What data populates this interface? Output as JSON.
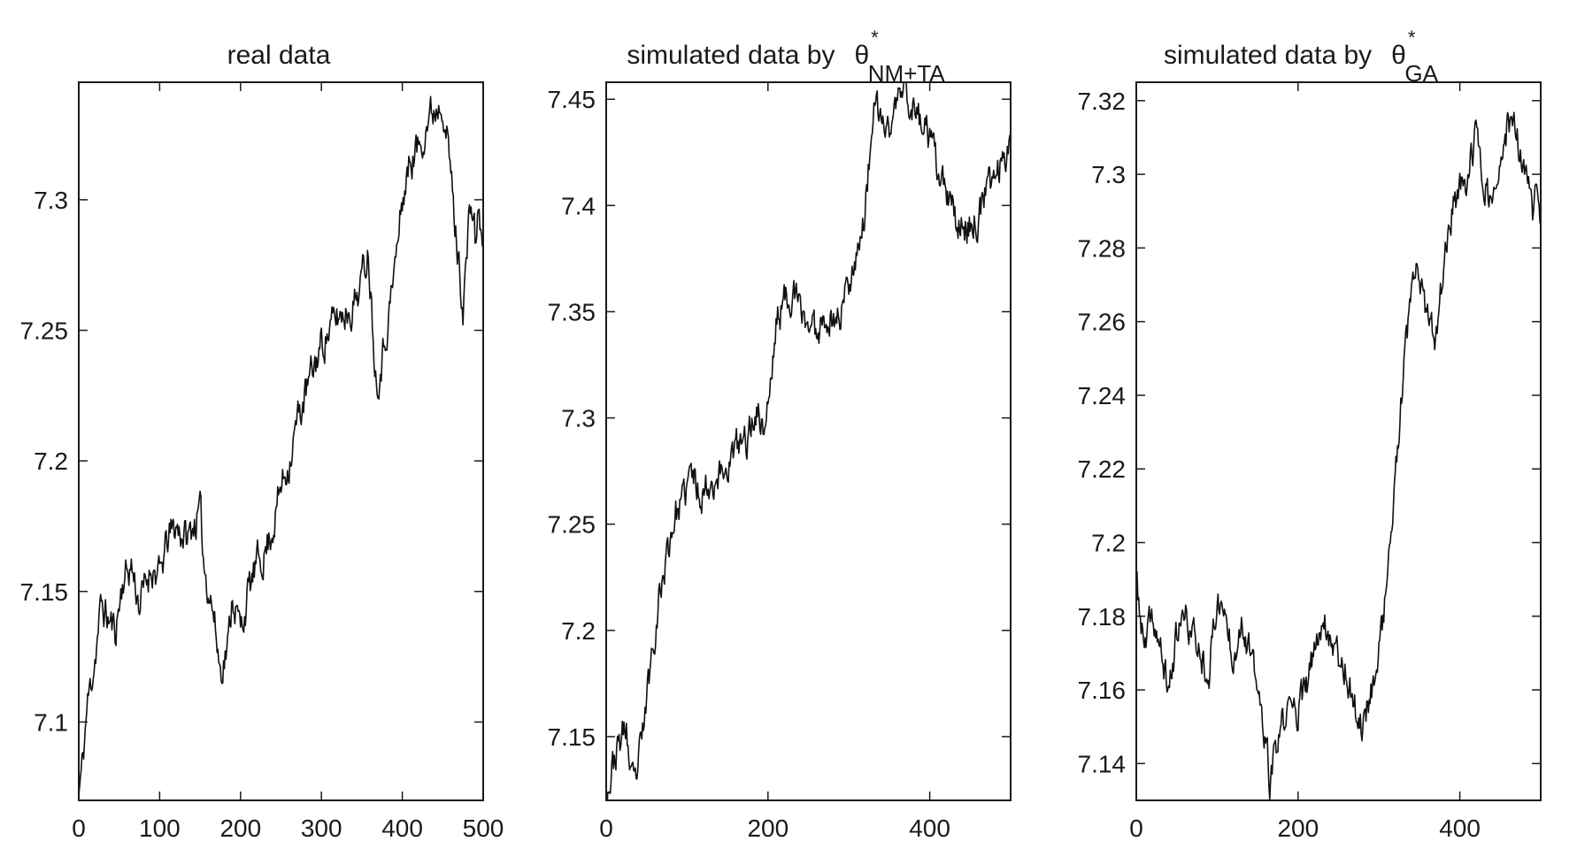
{
  "chart_data": [
    {
      "type": "line",
      "title": "real data",
      "title_math": null,
      "xlim": [
        0,
        500
      ],
      "ylim": [
        7.07,
        7.345
      ],
      "xticks": [
        0,
        100,
        200,
        300,
        400,
        500
      ],
      "xtick_labels": [
        "0",
        "100",
        "200",
        "300",
        "400",
        "500"
      ],
      "yticks": [
        7.1,
        7.15,
        7.2,
        7.25,
        7.3
      ],
      "ytick_labels": [
        "7.1",
        "7.15",
        "7.2",
        "7.25",
        "7.3"
      ],
      "grid": false,
      "series": [
        {
          "color": "#111111",
          "anchors_x": [
            0,
            5,
            10,
            20,
            28,
            35,
            45,
            55,
            65,
            75,
            90,
            100,
            110,
            120,
            135,
            140,
            150,
            155,
            165,
            175,
            185,
            190,
            200,
            210,
            220,
            230,
            240,
            250,
            260,
            270,
            285,
            300,
            320,
            340,
            350,
            358,
            362,
            368,
            375,
            385,
            395,
            400,
            410,
            420,
            430,
            440,
            450,
            455,
            460,
            465,
            470,
            475,
            480,
            485,
            490,
            495,
            500
          ],
          "anchors_y": [
            7.072,
            7.085,
            7.105,
            7.125,
            7.145,
            7.14,
            7.135,
            7.155,
            7.16,
            7.145,
            7.16,
            7.155,
            7.17,
            7.175,
            7.17,
            7.175,
            7.18,
            7.16,
            7.145,
            7.12,
            7.13,
            7.15,
            7.135,
            7.15,
            7.16,
            7.165,
            7.175,
            7.19,
            7.2,
            7.215,
            7.23,
            7.245,
            7.255,
            7.26,
            7.27,
            7.282,
            7.26,
            7.23,
            7.24,
            7.26,
            7.285,
            7.3,
            7.315,
            7.32,
            7.33,
            7.335,
            7.34,
            7.325,
            7.31,
            7.29,
            7.275,
            7.26,
            7.28,
            7.3,
            7.285,
            7.295,
            7.28
          ],
          "noise_amp": 0.006,
          "seed": 11
        }
      ]
    },
    {
      "type": "line",
      "title": "simulated data by",
      "title_math": {
        "symbol": "θ",
        "sup": "*",
        "sub": "NM+TA"
      },
      "xlim": [
        0,
        500
      ],
      "ylim": [
        7.12,
        7.458
      ],
      "xticks": [
        0,
        200,
        400
      ],
      "xtick_labels": [
        "0",
        "200",
        "400"
      ],
      "yticks": [
        7.15,
        7.2,
        7.25,
        7.3,
        7.35,
        7.4,
        7.45
      ],
      "ytick_labels": [
        "7.15",
        "7.2",
        "7.25",
        "7.3",
        "7.35",
        "7.4",
        "7.45"
      ],
      "grid": false,
      "series": [
        {
          "color": "#111111",
          "anchors_x": [
            0,
            5,
            10,
            20,
            25,
            30,
            35,
            45,
            55,
            65,
            75,
            85,
            95,
            105,
            115,
            130,
            145,
            160,
            175,
            185,
            195,
            205,
            210,
            220,
            230,
            240,
            250,
            260,
            270,
            280,
            290,
            300,
            310,
            320,
            325,
            330,
            340,
            350,
            360,
            370,
            380,
            390,
            400,
            410,
            420,
            430,
            440,
            450,
            460,
            470,
            480,
            490,
            500
          ],
          "anchors_y": [
            7.125,
            7.13,
            7.14,
            7.15,
            7.155,
            7.13,
            7.125,
            7.15,
            7.185,
            7.215,
            7.235,
            7.255,
            7.26,
            7.275,
            7.265,
            7.27,
            7.275,
            7.285,
            7.29,
            7.305,
            7.295,
            7.32,
            7.345,
            7.355,
            7.36,
            7.35,
            7.345,
            7.34,
            7.35,
            7.345,
            7.35,
            7.365,
            7.38,
            7.395,
            7.42,
            7.445,
            7.44,
            7.435,
            7.45,
            7.455,
            7.445,
            7.44,
            7.43,
            7.415,
            7.405,
            7.395,
            7.39,
            7.39,
            7.395,
            7.405,
            7.415,
            7.42,
            7.435
          ],
          "noise_amp": 0.007,
          "seed": 23
        }
      ]
    },
    {
      "type": "line",
      "title": "simulated data by",
      "title_math": {
        "symbol": "θ",
        "sup": "*",
        "sub": "GA"
      },
      "xlim": [
        0,
        500
      ],
      "ylim": [
        7.13,
        7.325
      ],
      "xticks": [
        0,
        200,
        400
      ],
      "xtick_labels": [
        "0",
        "200",
        "400"
      ],
      "yticks": [
        7.14,
        7.16,
        7.18,
        7.2,
        7.22,
        7.24,
        7.26,
        7.28,
        7.3,
        7.32
      ],
      "ytick_labels": [
        "7.14",
        "7.16",
        "7.18",
        "7.2",
        "7.22",
        "7.24",
        "7.26",
        "7.28",
        "7.3",
        "7.32"
      ],
      "grid": false,
      "series": [
        {
          "color": "#111111",
          "anchors_x": [
            0,
            5,
            10,
            20,
            30,
            40,
            50,
            60,
            70,
            80,
            90,
            100,
            110,
            120,
            130,
            140,
            150,
            160,
            165,
            170,
            180,
            190,
            200,
            210,
            220,
            230,
            240,
            250,
            260,
            270,
            280,
            290,
            300,
            310,
            320,
            330,
            340,
            345,
            350,
            360,
            370,
            380,
            390,
            400,
            410,
            420,
            430,
            440,
            450,
            460,
            470,
            480,
            490,
            495,
            500
          ],
          "anchors_y": [
            7.19,
            7.18,
            7.17,
            7.18,
            7.17,
            7.16,
            7.175,
            7.18,
            7.175,
            7.17,
            7.165,
            7.185,
            7.18,
            7.17,
            7.18,
            7.17,
            7.16,
            7.145,
            7.135,
            7.14,
            7.15,
            7.155,
            7.155,
            7.16,
            7.17,
            7.18,
            7.175,
            7.17,
            7.165,
            7.155,
            7.15,
            7.16,
            7.17,
            7.19,
            7.215,
            7.245,
            7.265,
            7.275,
            7.27,
            7.26,
            7.255,
            7.275,
            7.29,
            7.295,
            7.3,
            7.31,
            7.3,
            7.29,
            7.3,
            7.315,
            7.31,
            7.3,
            7.29,
            7.295,
            7.29
          ],
          "noise_amp": 0.004,
          "seed": 37
        }
      ]
    }
  ]
}
